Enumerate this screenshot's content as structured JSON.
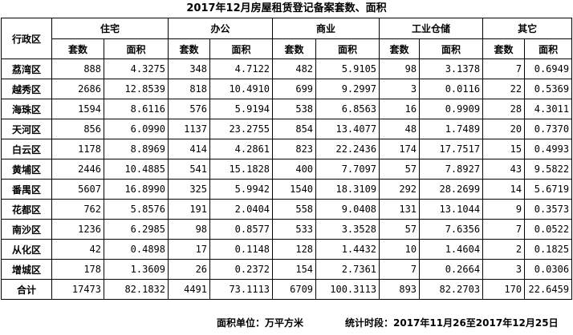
{
  "title": "2017年12月房屋租赁登记备案套数、面积",
  "header": {
    "district_label": "行政区",
    "groups": [
      "住宅",
      "办公",
      "商业",
      "工业仓储",
      "其它"
    ],
    "sub": [
      "套数",
      "面积"
    ]
  },
  "rows": [
    {
      "name": "荔湾区",
      "values": [
        "888",
        "4.3275",
        "348",
        "4.7122",
        "482",
        "5.9105",
        "98",
        "3.1378",
        "7",
        "0.6949"
      ]
    },
    {
      "name": "越秀区",
      "values": [
        "2686",
        "12.8539",
        "818",
        "10.4910",
        "699",
        "9.2997",
        "3",
        "0.0116",
        "22",
        "0.5369"
      ]
    },
    {
      "name": "海珠区",
      "values": [
        "1594",
        "8.6116",
        "576",
        "5.9194",
        "538",
        "6.8563",
        "16",
        "0.9909",
        "28",
        "4.3011"
      ]
    },
    {
      "name": "天河区",
      "values": [
        "856",
        "6.0990",
        "1137",
        "23.2755",
        "854",
        "13.4077",
        "48",
        "1.7489",
        "20",
        "0.7370"
      ]
    },
    {
      "name": "白云区",
      "values": [
        "1178",
        "8.8969",
        "414",
        "4.2861",
        "823",
        "22.2436",
        "174",
        "17.7517",
        "15",
        "0.4993"
      ]
    },
    {
      "name": "黄埔区",
      "values": [
        "2446",
        "10.4885",
        "541",
        "15.1828",
        "400",
        "7.7097",
        "57",
        "7.8927",
        "43",
        "9.5822"
      ]
    },
    {
      "name": "番禺区",
      "values": [
        "5607",
        "16.8990",
        "325",
        "5.9942",
        "1540",
        "18.3109",
        "292",
        "28.2699",
        "14",
        "5.6719"
      ]
    },
    {
      "name": "花都区",
      "values": [
        "762",
        "5.8576",
        "191",
        "2.0404",
        "558",
        "9.0408",
        "131",
        "13.1044",
        "9",
        "0.3573"
      ]
    },
    {
      "name": "南沙区",
      "values": [
        "1236",
        "6.2985",
        "98",
        "0.8577",
        "533",
        "3.3528",
        "57",
        "7.6356",
        "7",
        "0.0522"
      ]
    },
    {
      "name": "从化区",
      "values": [
        "42",
        "0.4898",
        "17",
        "0.1148",
        "128",
        "1.4432",
        "10",
        "1.4604",
        "2",
        "0.1825"
      ]
    },
    {
      "name": "增城区",
      "values": [
        "178",
        "1.3609",
        "26",
        "0.2372",
        "154",
        "2.7361",
        "7",
        "0.2664",
        "3",
        "0.0306"
      ]
    }
  ],
  "total": {
    "name": "合计",
    "values": [
      "17473",
      "82.1832",
      "4491",
      "73.1113",
      "6709",
      "100.3113",
      "893",
      "82.2703",
      "170",
      "22.6459"
    ]
  },
  "footer": {
    "unit": "面积单位：万平方米",
    "period": "统计时段：2017年11月26至2017年12月25日"
  }
}
